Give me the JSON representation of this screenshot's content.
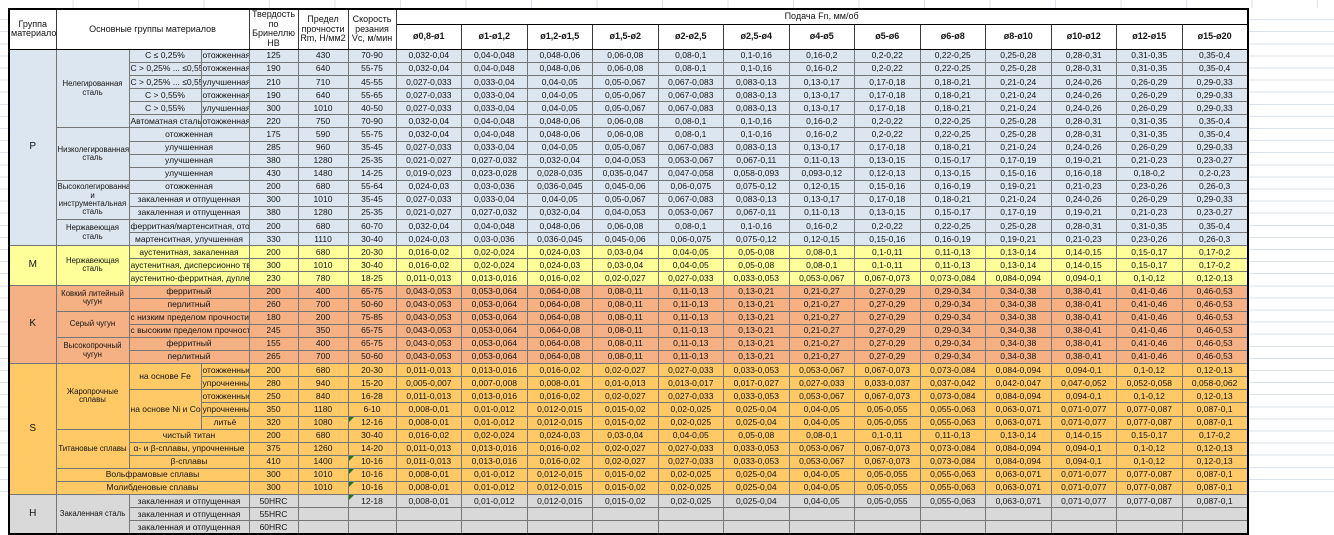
{
  "header": {
    "group": "Группа материалов",
    "materials": "Основные группы материалов",
    "hardness": "Твердость по Бринеллю HB",
    "strength": "Предел прочности Rm, Н/мм2",
    "speed": "Скорость резания Vc, м/мин",
    "feed": "Подача Fn, мм/об",
    "feed_cols": [
      "ø0,8-ø1",
      "ø1-ø1,2",
      "ø1,2-ø1,5",
      "ø1,5-ø2",
      "ø2-ø2,5",
      "ø2,5-ø4",
      "ø4-ø5",
      "ø5-ø6",
      "ø6-ø8",
      "ø8-ø10",
      "ø10-ø12",
      "ø12-ø15",
      "ø15-ø20"
    ]
  },
  "colors": {
    "group_P": "#DCE6F1",
    "group_M": "#FFFF99",
    "group_K": "#F5B183",
    "group_S": "#FFC965",
    "group_H": "#D9D9D9",
    "note_triangle": "#1F7A1F"
  },
  "feed_patterns": {
    "A": [
      "0,032-0,04",
      "0,04-0,048",
      "0,048-0,06",
      "0,06-0,08",
      "0,08-0,1",
      "0,1-0,16",
      "0,16-0,2",
      "0,2-0,22",
      "0,22-0,25",
      "0,25-0,28",
      "0,28-0,31",
      "0,31-0,35",
      "0,35-0,4"
    ],
    "B": [
      "0,027-0,033",
      "0,033-0,04",
      "0,04-0,05",
      "0,05-0,067",
      "0,067-0,083",
      "0,083-0,13",
      "0,13-0,17",
      "0,17-0,18",
      "0,18-0,21",
      "0,21-0,24",
      "0,24-0,26",
      "0,26-0,29",
      "0,29-0,33"
    ],
    "C": [
      "0,021-0,027",
      "0,027-0,032",
      "0,032-0,04",
      "0,04-0,053",
      "0,053-0,067",
      "0,067-0,11",
      "0,11-0,13",
      "0,13-0,15",
      "0,15-0,17",
      "0,17-0,19",
      "0,19-0,21",
      "0,21-0,23",
      "0,23-0,27"
    ],
    "D": [
      "0,019-0,023",
      "0,023-0,028",
      "0,028-0,035",
      "0,035-0,047",
      "0,047-0,058",
      "0,058-0,093",
      "0,093-0,12",
      "0,12-0,13",
      "0,13-0,15",
      "0,15-0,16",
      "0,16-0,18",
      "0,18-0,2",
      "0,2-0,23"
    ],
    "E": [
      "0,024-0,03",
      "0,03-0,036",
      "0,036-0,045",
      "0,045-0,06",
      "0,06-0,075",
      "0,075-0,12",
      "0,12-0,15",
      "0,15-0,16",
      "0,16-0,19",
      "0,19-0,21",
      "0,21-0,23",
      "0,23-0,26",
      "0,26-0,3"
    ],
    "F": [
      "0,016-0,02",
      "0,02-0,024",
      "0,024-0,03",
      "0,03-0,04",
      "0,04-0,05",
      "0,05-0,08",
      "0,08-0,1",
      "0,1-0,11",
      "0,11-0,13",
      "0,13-0,14",
      "0,14-0,15",
      "0,15-0,17",
      "0,17-0,2"
    ],
    "G": [
      "0,011-0,013",
      "0,013-0,016",
      "0,016-0,02",
      "0,02-0,027",
      "0,027-0,033",
      "0,033-0,053",
      "0,053-0,067",
      "0,067-0,073",
      "0,073-0,084",
      "0,084-0,094",
      "0,094-0,1",
      "0,1-0,12",
      "0,12-0,13"
    ],
    "H": [
      "0,043-0,053",
      "0,053-0,064",
      "0,064-0,08",
      "0,08-0,11",
      "0,11-0,13",
      "0,13-0,21",
      "0,21-0,27",
      "0,27-0,29",
      "0,29-0,34",
      "0,34-0,38",
      "0,38-0,41",
      "0,41-0,46",
      "0,46-0,53"
    ],
    "I": [
      "0,005-0,007",
      "0,007-0,008",
      "0,008-0,01",
      "0,01-0,013",
      "0,013-0,017",
      "0,017-0,027",
      "0,027-0,033",
      "0,033-0,037",
      "0,037-0,042",
      "0,042-0,047",
      "0,047-0,052",
      "0,052-0,058",
      "0,058-0,062"
    ],
    "J": [
      "0,008-0,01",
      "0,01-0,012",
      "0,012-0,015",
      "0,015-0,02",
      "0,02-0,025",
      "0,025-0,04",
      "0,04-0,05",
      "0,05-0,055",
      "0,055-0,063",
      "0,063-0,071",
      "0,071-0,077",
      "0,077-0,087",
      "0,087-0,1"
    ],
    "EMPTY": [
      "",
      "",
      "",
      "",
      "",
      "",
      "",
      "",
      "",
      "",
      "",
      "",
      ""
    ]
  },
  "sections": [
    {
      "code": "P",
      "rows": [
        {
          "cells": [
            {
              "t": "Нелегированная сталь",
              "r": 6,
              "cls": "wrap"
            },
            {
              "t": "C ≤ 0,25%"
            },
            {
              "t": "отожженная"
            }
          ],
          "hb": "125",
          "rm": "430",
          "vc": "70-90",
          "feed": "A"
        },
        {
          "cells": [
            {
              "t": "C > 0,25% ... ≤0,55%"
            },
            {
              "t": "отожженная"
            }
          ],
          "hb": "190",
          "rm": "640",
          "vc": "55-75",
          "feed": "A"
        },
        {
          "cells": [
            {
              "t": "C > 0,25% ... ≤0,55%"
            },
            {
              "t": "улучшенная"
            }
          ],
          "hb": "210",
          "rm": "710",
          "vc": "45-55",
          "feed": "B"
        },
        {
          "cells": [
            {
              "t": "C > 0,55%"
            },
            {
              "t": "отожженная"
            }
          ],
          "hb": "190",
          "rm": "640",
          "vc": "55-65",
          "feed": "B"
        },
        {
          "cells": [
            {
              "t": "C > 0,55%"
            },
            {
              "t": "улучшенная"
            }
          ],
          "hb": "300",
          "rm": "1010",
          "vc": "40-50",
          "feed": "B"
        },
        {
          "cells": [
            {
              "t": "Автоматная сталь"
            },
            {
              "t": "отожженная"
            }
          ],
          "hb": "220",
          "rm": "750",
          "vc": "70-90",
          "feed": "A"
        },
        {
          "cells": [
            {
              "t": "Низколегированная сталь",
              "r": 4,
              "cls": "wrap"
            },
            {
              "t": "отожженная",
              "c": 2
            }
          ],
          "hb": "175",
          "rm": "590",
          "vc": "55-75",
          "feed": "A"
        },
        {
          "cells": [
            {
              "t": "улучшенная",
              "c": 2
            }
          ],
          "hb": "285",
          "rm": "960",
          "vc": "35-45",
          "feed": "B"
        },
        {
          "cells": [
            {
              "t": "улучшенная",
              "c": 2
            }
          ],
          "hb": "380",
          "rm": "1280",
          "vc": "25-35",
          "feed": "C"
        },
        {
          "cells": [
            {
              "t": "улучшенная",
              "c": 2
            }
          ],
          "hb": "430",
          "rm": "1480",
          "vc": "14-25",
          "feed": "D"
        },
        {
          "cells": [
            {
              "t": "Высоколегированная и инструментальная сталь",
              "r": 3,
              "cls": "wrap"
            },
            {
              "t": "отожженная",
              "c": 2
            }
          ],
          "hb": "200",
          "rm": "680",
          "vc": "55-64",
          "feed": "E"
        },
        {
          "cells": [
            {
              "t": "закаленная и отпущенная",
              "c": 2
            }
          ],
          "hb": "300",
          "rm": "1010",
          "vc": "35-45",
          "feed": "B"
        },
        {
          "cells": [
            {
              "t": "закаленная и отпущенная",
              "c": 2
            }
          ],
          "hb": "380",
          "rm": "1280",
          "vc": "25-35",
          "feed": "C"
        },
        {
          "cells": [
            {
              "t": "Нержавеющая сталь",
              "r": 2,
              "cls": "wrap"
            },
            {
              "t": "ферритная/мартенситная, отожженная",
              "c": 2
            }
          ],
          "hb": "200",
          "rm": "680",
          "vc": "60-70",
          "feed": "A"
        },
        {
          "cells": [
            {
              "t": "мартенситная, улучшенная",
              "c": 2
            }
          ],
          "hb": "330",
          "rm": "1110",
          "vc": "30-40",
          "feed": "E"
        }
      ]
    },
    {
      "code": "M",
      "rows": [
        {
          "cells": [
            {
              "t": "Нержавеющая сталь",
              "r": 3,
              "cls": "wrap"
            },
            {
              "t": "аустенитная, закаленная",
              "c": 2
            }
          ],
          "hb": "200",
          "rm": "680",
          "vc": "20-30",
          "feed": "F"
        },
        {
          "cells": [
            {
              "t": "аустенитная, дисперсионно твердеющая",
              "c": 2
            }
          ],
          "hb": "300",
          "rm": "1010",
          "vc": "30-40",
          "feed": "F"
        },
        {
          "cells": [
            {
              "t": "аустенитно-ферритная, дуплексная",
              "c": 2
            }
          ],
          "hb": "230",
          "rm": "780",
          "vc": "18-25",
          "feed": "G"
        }
      ]
    },
    {
      "code": "K",
      "rows": [
        {
          "cells": [
            {
              "t": "Ковкий литейный чугун",
              "r": 2,
              "cls": "wrap"
            },
            {
              "t": "ферритный",
              "c": 2
            }
          ],
          "hb": "200",
          "rm": "400",
          "vc": "65-75",
          "feed": "H"
        },
        {
          "cells": [
            {
              "t": "перлитный",
              "c": 2
            }
          ],
          "hb": "260",
          "rm": "700",
          "vc": "50-60",
          "feed": "H"
        },
        {
          "cells": [
            {
              "t": "Серый чугун",
              "r": 2,
              "cls": "wrap"
            },
            {
              "t": "с низким пределом прочности",
              "c": 2
            }
          ],
          "hb": "180",
          "rm": "200",
          "vc": "75-85",
          "feed": "H"
        },
        {
          "cells": [
            {
              "t": "с высоким пределом прочности",
              "c": 2
            }
          ],
          "hb": "245",
          "rm": "350",
          "vc": "65-75",
          "feed": "H"
        },
        {
          "cells": [
            {
              "t": "Высокопрочный чугун",
              "r": 2,
              "cls": "wrap"
            },
            {
              "t": "ферритный",
              "c": 2
            }
          ],
          "hb": "155",
          "rm": "400",
          "vc": "65-75",
          "feed": "H"
        },
        {
          "cells": [
            {
              "t": "перлитный",
              "c": 2
            }
          ],
          "hb": "265",
          "rm": "700",
          "vc": "50-60",
          "feed": "H"
        }
      ]
    },
    {
      "code": "S",
      "rows": [
        {
          "cells": [
            {
              "t": "Жаропрочные сплавы",
              "r": 5,
              "cls": "wrap"
            },
            {
              "t": "на основе Fe",
              "r": 2
            },
            {
              "t": "отожженные"
            }
          ],
          "hb": "200",
          "rm": "680",
          "vc": "20-30",
          "feed": "G"
        },
        {
          "cells": [
            {
              "t": "упрочненные"
            }
          ],
          "hb": "280",
          "rm": "940",
          "vc": "15-20",
          "feed": "I"
        },
        {
          "cells": [
            {
              "t": "на основе Ni и Co",
              "r": 3
            },
            {
              "t": "отожженные"
            }
          ],
          "hb": "250",
          "rm": "840",
          "vc": "16-28",
          "feed": "G"
        },
        {
          "cells": [
            {
              "t": "упрочненные"
            }
          ],
          "hb": "350",
          "rm": "1180",
          "vc": "6-10",
          "feed": "J"
        },
        {
          "cells": [
            {
              "t": "литьё"
            }
          ],
          "hb": "320",
          "rm": "1080",
          "vc": "12-16",
          "vc_note": true,
          "feed": "J"
        },
        {
          "cells": [
            {
              "t": "Титановые сплавы",
              "r": 3,
              "cls": "wrap"
            },
            {
              "t": "чистый титан",
              "c": 2
            }
          ],
          "hb": "200",
          "rm": "680",
          "vc": "30-40",
          "feed": "F"
        },
        {
          "cells": [
            {
              "t": "α- и β-сплавы, упрочненные",
              "c": 2
            }
          ],
          "hb": "375",
          "rm": "1260",
          "vc": "14-20",
          "feed": "G"
        },
        {
          "cells": [
            {
              "t": "β-сплавы",
              "c": 2
            }
          ],
          "hb": "410",
          "rm": "1400",
          "vc": "10-16",
          "vc_note": true,
          "feed": "G"
        },
        {
          "cells": [
            {
              "t": "Вольфрамовые сплавы",
              "c": 3
            }
          ],
          "hb": "300",
          "rm": "1010",
          "vc": "10-16",
          "vc_note": true,
          "feed": "J"
        },
        {
          "cells": [
            {
              "t": "Молибденовые сплавы",
              "c": 3
            }
          ],
          "hb": "300",
          "rm": "1010",
          "vc": "10-16",
          "vc_note": true,
          "feed": "J"
        }
      ]
    },
    {
      "code": "H",
      "rows": [
        {
          "cells": [
            {
              "t": "Закаленная сталь",
              "r": 3,
              "cls": "wrap"
            },
            {
              "t": "закаленная и отпущенная",
              "c": 2
            }
          ],
          "hb": "50HRC",
          "rm": "",
          "vc": "12-18",
          "vc_note": true,
          "feed": "J"
        },
        {
          "cells": [
            {
              "t": "закаленная и отпущенная",
              "c": 2
            }
          ],
          "hb": "55HRC",
          "rm": "",
          "vc": "",
          "feed": "EMPTY"
        },
        {
          "cells": [
            {
              "t": "закаленная и отпущенная",
              "c": 2
            }
          ],
          "hb": "60HRC",
          "rm": "",
          "vc": "",
          "feed": "EMPTY"
        }
      ]
    }
  ]
}
